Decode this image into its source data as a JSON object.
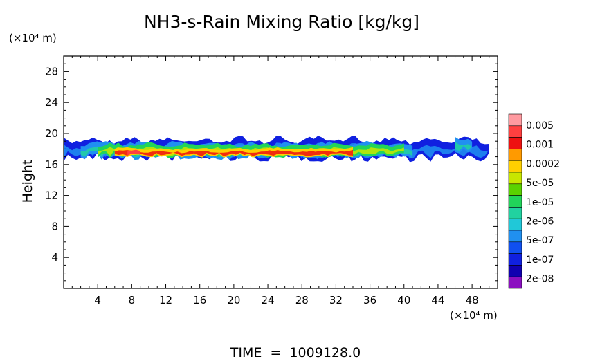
{
  "chart_data": {
    "type": "heatmap",
    "title": "NH3-s-Rain Mixing Ratio [kg/kg]",
    "ylabel": "Height",
    "y_unit_label": "(×10⁴ m)",
    "x_unit_label": "(×10⁴ m)",
    "footer": "TIME  =  1009128.0",
    "xlim": [
      0,
      51
    ],
    "ylim": [
      0,
      30
    ],
    "xticks": [
      "4",
      "8",
      "12",
      "16",
      "20",
      "24",
      "28",
      "32",
      "36",
      "40",
      "44",
      "48"
    ],
    "yticks": [
      "4",
      "8",
      "12",
      "16",
      "20",
      "24",
      "28"
    ],
    "colorbar": {
      "labels": [
        "0.005",
        "0.001",
        "0.0002",
        "5e-05",
        "1e-05",
        "2e-06",
        "5e-07",
        "1e-07",
        "2e-08"
      ],
      "colors": [
        "#ff9aa0",
        "#ff4040",
        "#ee1111",
        "#ff9a00",
        "#ffd000",
        "#c8e600",
        "#5ad200",
        "#21d45a",
        "#21d2a0",
        "#20c8d8",
        "#2090f0",
        "#1050f0",
        "#1020e0",
        "#1000b0",
        "#8b10c0"
      ]
    },
    "regions": [
      {
        "level": 2,
        "x": [
          0,
          50
        ],
        "y": [
          16.6,
          19.6
        ],
        "shape": "upper-band"
      },
      {
        "level": 4,
        "x": [
          2,
          41
        ],
        "y": [
          16.8,
          19.0
        ],
        "shape": "main-layer"
      },
      {
        "level": 7,
        "x": [
          4,
          40
        ],
        "y": [
          17.0,
          18.8
        ],
        "shape": "core"
      },
      {
        "level": 10,
        "x": [
          6,
          34
        ],
        "y": [
          17.0,
          18.2
        ],
        "shape": "maxima"
      },
      {
        "level": 13,
        "x": [
          7.5,
          9
        ],
        "y": [
          17.2,
          17.9
        ],
        "shape": "peak"
      },
      {
        "level": 4,
        "x": [
          46,
          48
        ],
        "y": [
          17.4,
          19.6
        ],
        "shape": "isolated-cell"
      }
    ]
  }
}
